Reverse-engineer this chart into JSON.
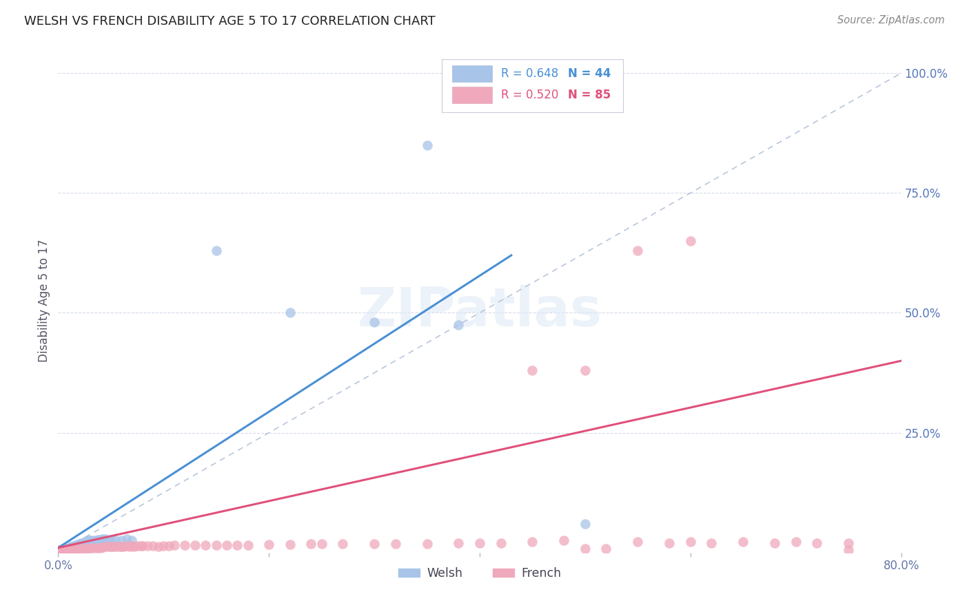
{
  "title": "WELSH VS FRENCH DISABILITY AGE 5 TO 17 CORRELATION CHART",
  "source": "Source: ZipAtlas.com",
  "ylabel": "Disability Age 5 to 17",
  "legend_welsh": "Welsh",
  "legend_french": "French",
  "welsh_R": "R = 0.648",
  "welsh_N": "N = 44",
  "french_R": "R = 0.520",
  "french_N": "N = 85",
  "welsh_color": "#a8c4e8",
  "welsh_line_color": "#4a90d4",
  "french_color": "#f0a8bc",
  "french_line_color": "#e0507a",
  "ref_line_color": "#b0c0d8",
  "background_color": "#ffffff",
  "grid_color": "#d0d8e8",
  "xlim": [
    0.0,
    0.8
  ],
  "ylim": [
    0.0,
    1.05
  ],
  "welsh_points": [
    [
      0.002,
      0.005
    ],
    [
      0.002,
      0.006
    ],
    [
      0.003,
      0.005
    ],
    [
      0.003,
      0.006
    ],
    [
      0.004,
      0.005
    ],
    [
      0.004,
      0.007
    ],
    [
      0.005,
      0.005
    ],
    [
      0.005,
      0.007
    ],
    [
      0.006,
      0.006
    ],
    [
      0.006,
      0.008
    ],
    [
      0.007,
      0.006
    ],
    [
      0.007,
      0.009
    ],
    [
      0.008,
      0.008
    ],
    [
      0.009,
      0.009
    ],
    [
      0.01,
      0.01
    ],
    [
      0.011,
      0.01
    ],
    [
      0.012,
      0.012
    ],
    [
      0.013,
      0.012
    ],
    [
      0.015,
      0.013
    ],
    [
      0.016,
      0.015
    ],
    [
      0.018,
      0.016
    ],
    [
      0.02,
      0.018
    ],
    [
      0.022,
      0.02
    ],
    [
      0.025,
      0.022
    ],
    [
      0.028,
      0.025
    ],
    [
      0.03,
      0.025
    ],
    [
      0.032,
      0.026
    ],
    [
      0.035,
      0.025
    ],
    [
      0.038,
      0.027
    ],
    [
      0.04,
      0.027
    ],
    [
      0.042,
      0.028
    ],
    [
      0.045,
      0.028
    ],
    [
      0.048,
      0.026
    ],
    [
      0.05,
      0.027
    ],
    [
      0.055,
      0.026
    ],
    [
      0.06,
      0.025
    ],
    [
      0.065,
      0.028
    ],
    [
      0.07,
      0.025
    ],
    [
      0.15,
      0.63
    ],
    [
      0.22,
      0.5
    ],
    [
      0.3,
      0.48
    ],
    [
      0.38,
      0.475
    ],
    [
      0.35,
      0.85
    ],
    [
      0.5,
      0.06
    ]
  ],
  "french_points": [
    [
      0.002,
      0.005
    ],
    [
      0.003,
      0.005
    ],
    [
      0.004,
      0.005
    ],
    [
      0.005,
      0.005
    ],
    [
      0.005,
      0.006
    ],
    [
      0.006,
      0.005
    ],
    [
      0.006,
      0.006
    ],
    [
      0.007,
      0.005
    ],
    [
      0.008,
      0.005
    ],
    [
      0.008,
      0.006
    ],
    [
      0.009,
      0.005
    ],
    [
      0.01,
      0.005
    ],
    [
      0.01,
      0.006
    ],
    [
      0.012,
      0.006
    ],
    [
      0.013,
      0.006
    ],
    [
      0.015,
      0.006
    ],
    [
      0.016,
      0.007
    ],
    [
      0.018,
      0.007
    ],
    [
      0.02,
      0.008
    ],
    [
      0.022,
      0.008
    ],
    [
      0.025,
      0.009
    ],
    [
      0.028,
      0.009
    ],
    [
      0.03,
      0.01
    ],
    [
      0.032,
      0.01
    ],
    [
      0.035,
      0.01
    ],
    [
      0.038,
      0.01
    ],
    [
      0.04,
      0.01
    ],
    [
      0.042,
      0.011
    ],
    [
      0.045,
      0.012
    ],
    [
      0.048,
      0.012
    ],
    [
      0.05,
      0.012
    ],
    [
      0.052,
      0.013
    ],
    [
      0.055,
      0.013
    ],
    [
      0.058,
      0.013
    ],
    [
      0.06,
      0.013
    ],
    [
      0.062,
      0.013
    ],
    [
      0.065,
      0.014
    ],
    [
      0.068,
      0.013
    ],
    [
      0.07,
      0.014
    ],
    [
      0.072,
      0.013
    ],
    [
      0.075,
      0.014
    ],
    [
      0.078,
      0.014
    ],
    [
      0.08,
      0.014
    ],
    [
      0.085,
      0.014
    ],
    [
      0.09,
      0.014
    ],
    [
      0.095,
      0.013
    ],
    [
      0.1,
      0.014
    ],
    [
      0.105,
      0.014
    ],
    [
      0.11,
      0.015
    ],
    [
      0.12,
      0.015
    ],
    [
      0.13,
      0.015
    ],
    [
      0.14,
      0.015
    ],
    [
      0.15,
      0.016
    ],
    [
      0.16,
      0.016
    ],
    [
      0.17,
      0.016
    ],
    [
      0.18,
      0.016
    ],
    [
      0.2,
      0.017
    ],
    [
      0.22,
      0.017
    ],
    [
      0.24,
      0.018
    ],
    [
      0.25,
      0.018
    ],
    [
      0.27,
      0.018
    ],
    [
      0.3,
      0.018
    ],
    [
      0.32,
      0.019
    ],
    [
      0.35,
      0.019
    ],
    [
      0.38,
      0.02
    ],
    [
      0.4,
      0.02
    ],
    [
      0.42,
      0.02
    ],
    [
      0.45,
      0.022
    ],
    [
      0.48,
      0.025
    ],
    [
      0.5,
      0.008
    ],
    [
      0.52,
      0.008
    ],
    [
      0.55,
      0.022
    ],
    [
      0.58,
      0.02
    ],
    [
      0.6,
      0.022
    ],
    [
      0.62,
      0.02
    ],
    [
      0.65,
      0.022
    ],
    [
      0.68,
      0.02
    ],
    [
      0.7,
      0.022
    ],
    [
      0.72,
      0.02
    ],
    [
      0.75,
      0.02
    ],
    [
      0.55,
      0.63
    ],
    [
      0.6,
      0.65
    ],
    [
      0.45,
      0.38
    ],
    [
      0.5,
      0.38
    ],
    [
      0.75,
      0.005
    ]
  ],
  "welsh_line_x": [
    0.0,
    0.43
  ],
  "welsh_line_y": [
    0.01,
    0.62
  ],
  "french_line_x": [
    0.0,
    0.8
  ],
  "french_line_y": [
    0.01,
    0.4
  ],
  "ref_line_x": [
    0.0,
    0.8
  ],
  "ref_line_y": [
    0.0,
    1.0
  ]
}
